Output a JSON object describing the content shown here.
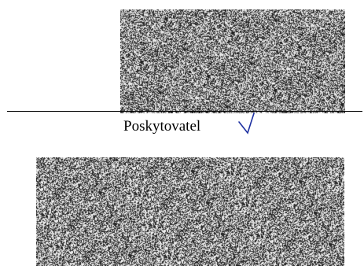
{
  "label_text": "Poskytovatel",
  "colors": {
    "background": "#ffffff",
    "line": "#000000",
    "text": "#000000",
    "check_mark": "#1c2fa0"
  }
}
